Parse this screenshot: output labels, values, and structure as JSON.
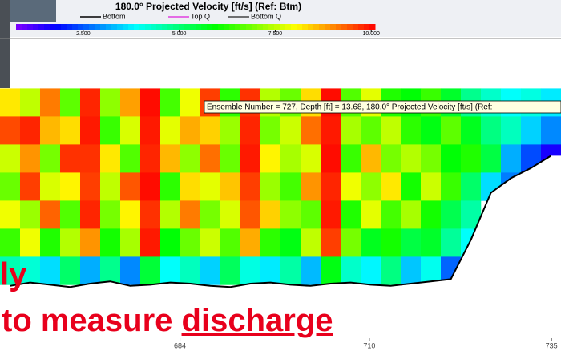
{
  "chart_data": {
    "type": "heatmap",
    "title": "180.0° Projected Velocity [ft/s] (Ref: Btm)",
    "legend_entries": [
      {
        "name": "Bottom",
        "color": "#000000"
      },
      {
        "name": "Top Q",
        "color": "#e040e0"
      },
      {
        "name": "Bottom Q",
        "color": "#444444"
      }
    ],
    "colorbar": {
      "lim": [
        0.75,
        10.1
      ],
      "colors": [
        "#8000ff",
        "#0000ff",
        "#0080ff",
        "#00ffff",
        "#00ff80",
        "#00ff00",
        "#80ff00",
        "#ffff00",
        "#ff8000",
        "#ff0000"
      ],
      "ticks": [
        {
          "value": 2.5,
          "label": "2.500"
        },
        {
          "value": 5,
          "label": "5.000"
        },
        {
          "value": 7.5,
          "label": "7.500"
        },
        {
          "value": 10,
          "label": "10.000"
        }
      ]
    },
    "xlim": [
      659.3,
      736.3
    ],
    "xticks": [
      684,
      710,
      735
    ],
    "ylim": [
      0,
      25
    ],
    "y_edges": [
      3.6,
      6.1,
      8.6,
      11.1,
      13.6,
      16.1,
      18.6,
      21.1
    ],
    "values": [
      [
        8.2,
        9.5,
        7.6,
        6.8,
        7.9,
        6.4,
        4.5
      ],
      [
        7.5,
        9.8,
        8.9,
        9.6,
        7.2,
        7.9,
        4.2
      ],
      [
        9.1,
        8.6,
        6.9,
        7.7,
        9.3,
        6.2,
        3.6
      ],
      [
        6.7,
        8.3,
        9.7,
        8.1,
        6.6,
        7.4,
        5.1
      ],
      [
        9.8,
        9.9,
        9.7,
        9.6,
        9.8,
        8.9,
        3.2
      ],
      [
        7.1,
        6.4,
        8.2,
        7.5,
        6.9,
        6.1,
        4.8
      ],
      [
        8.8,
        7.7,
        6.6,
        9.4,
        8.1,
        7.3,
        2.9
      ],
      [
        10,
        9.9,
        9.8,
        10,
        9.7,
        9.9,
        5.5
      ],
      [
        6.5,
        7.8,
        8.6,
        6.3,
        7.4,
        5.9,
        3.9
      ],
      [
        7.9,
        8.7,
        7.1,
        8.3,
        9.1,
        6.8,
        4.4
      ],
      [
        9.6,
        8.4,
        9.2,
        7.8,
        6.9,
        7.6,
        3.5
      ],
      [
        6.3,
        7.2,
        6.8,
        8.5,
        7.7,
        6.6,
        5.2
      ],
      [
        9.7,
        9.8,
        9.9,
        9.6,
        9.4,
        8.7,
        4.1
      ],
      [
        7.4,
        6.9,
        8.1,
        7.2,
        8.4,
        6.3,
        3.7
      ],
      [
        6.8,
        7.6,
        7.3,
        6.5,
        7.1,
        5.8,
        4.6
      ],
      [
        8.3,
        9.2,
        7.7,
        8.9,
        6.7,
        7.5,
        3.3
      ],
      [
        10,
        9.9,
        10,
        9.8,
        9.9,
        9.6,
        5.8
      ],
      [
        6.6,
        7.3,
        6.4,
        7.9,
        6.2,
        6.9,
        4.3
      ],
      [
        7.8,
        6.7,
        8.6,
        7.1,
        7.8,
        5.7,
        3.8
      ],
      [
        6.2,
        7.5,
        6.9,
        8.2,
        6.5,
        6.1,
        4.9
      ],
      [
        5.9,
        6.3,
        7.4,
        6.1,
        7.3,
        5.4,
        3.4
      ],
      [
        6.4,
        5.8,
        6.9,
        7.6,
        6.1,
        5.6,
        4.0
      ],
      [
        5.6,
        6.7,
        5.9,
        6.4,
        5.3,
        4.7,
        2.6
      ],
      [
        4.8,
        5.7,
        6.2,
        5.1,
        4.6,
        3.9,
        null
      ],
      [
        4.3,
        4.9,
        5.4,
        3.6,
        null,
        null,
        null
      ],
      [
        3.9,
        4.4,
        3.2,
        2.8,
        null,
        null,
        null
      ],
      [
        4.1,
        3.5,
        2.4,
        null,
        null,
        null,
        null
      ],
      [
        3.7,
        2.9,
        1.6,
        null,
        null,
        null,
        null
      ]
    ],
    "bottom_depth": [
      21.2,
      20.9,
      21.1,
      21.3,
      21.0,
      20.8,
      21.2,
      21.1,
      20.9,
      21.0,
      21.2,
      21.3,
      21.0,
      20.9,
      21.1,
      21.2,
      21.0,
      20.9,
      21.1,
      21.2,
      21.0,
      20.8,
      20.6,
      17.1,
      12.9,
      11.6,
      10.7,
      9.6
    ],
    "tooltip": "Ensemble Number = 727, Depth [ft] = 13.68, 180.0° Projected Velocity [ft/s] (Ref:",
    "overlay_text": {
      "line1": "ly",
      "line2": "to measure ",
      "emphasis": "discharge"
    }
  }
}
